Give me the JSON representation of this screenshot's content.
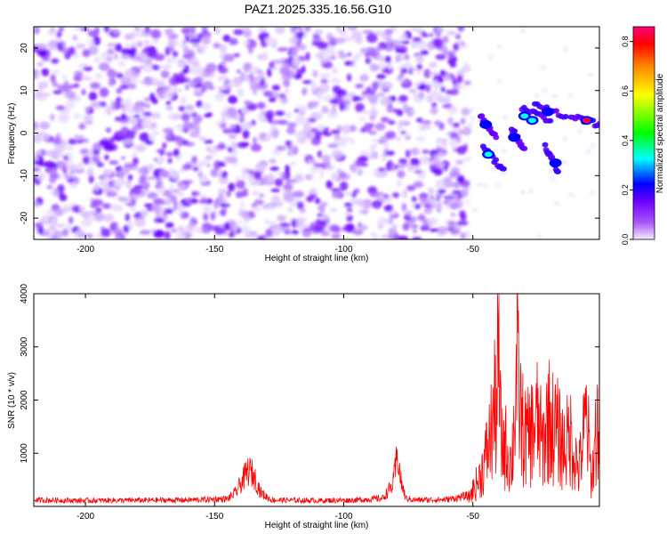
{
  "title": "PAZ1.2025.335.16.56.G10",
  "chart_data": [
    {
      "type": "heatmap",
      "title": "PAZ1.2025.335.16.56.G10",
      "xlabel": "Height of straight line (km)",
      "ylabel": "Frequency (Hz)",
      "xlim": [
        -220,
        -1
      ],
      "ylim": [
        -25,
        25
      ],
      "x_ticks": [
        -200,
        -150,
        -100,
        -50
      ],
      "y_ticks": [
        -20,
        -10,
        0,
        10,
        20
      ],
      "colorbar": {
        "label": "Normalized spectral amplitude",
        "range": [
          0.0,
          0.86
        ],
        "ticks": [
          0.0,
          0.2,
          0.4,
          0.6,
          0.8
        ],
        "colors": [
          "#f5ecff",
          "#a855f7",
          "#6b00ff",
          "#0000ff",
          "#00ffff",
          "#00ff00",
          "#ffff00",
          "#ff8000",
          "#ff0000",
          "#ff0080"
        ]
      },
      "noise_region": {
        "x": [
          -220,
          -52
        ],
        "freq": [
          -25,
          25
        ],
        "amplitude_range": [
          0.0,
          0.2
        ]
      },
      "signal_features": [
        {
          "x": -45,
          "freq": 2,
          "amplitude": 0.3
        },
        {
          "x": -44,
          "freq": -5,
          "amplitude": 0.35
        },
        {
          "x": -34,
          "freq": -1,
          "amplitude": 0.3
        },
        {
          "x": -30,
          "freq": 4,
          "amplitude": 0.35
        },
        {
          "x": -27,
          "freq": 3,
          "amplitude": 0.38
        },
        {
          "x": -21,
          "freq": 5,
          "amplitude": 0.3
        },
        {
          "x": -18,
          "freq": -7,
          "amplitude": 0.32
        },
        {
          "x": -6,
          "freq": 3,
          "amplitude": 0.86
        }
      ]
    },
    {
      "type": "line",
      "xlabel": "Height of straight line (km)",
      "ylabel": "SNR (10 * v/v)",
      "xlim": [
        -220,
        -1
      ],
      "ylim": [
        0,
        4000
      ],
      "x_ticks": [
        -200,
        -150,
        -100,
        -50
      ],
      "y_ticks": [
        1000,
        2000,
        3000,
        4000
      ],
      "color": "#ff0000",
      "series": [
        {
          "x": [
            -220,
            -200,
            -160,
            -145,
            -142,
            -139,
            -137,
            -135,
            -132,
            -128,
            -110,
            -95,
            -85,
            -81,
            -79,
            -78,
            -76,
            -72,
            -60,
            -52,
            -49,
            -47,
            -45,
            -43,
            -41,
            -40,
            -39,
            -37,
            -35,
            -33,
            -31,
            -29,
            -27,
            -25,
            -23,
            -21,
            -19,
            -17,
            -15,
            -12,
            -9,
            -6,
            -4,
            -2
          ],
          "y": [
            120,
            110,
            120,
            140,
            250,
            500,
            680,
            600,
            250,
            120,
            110,
            120,
            150,
            400,
            1000,
            500,
            150,
            120,
            130,
            200,
            600,
            900,
            1400,
            2100,
            3000,
            4000,
            1800,
            1700,
            1200,
            3900,
            2300,
            1900,
            2200,
            2500,
            1700,
            2600,
            2300,
            2100,
            1700,
            2000,
            1000,
            2600,
            700,
            2400
          ]
        }
      ]
    }
  ]
}
